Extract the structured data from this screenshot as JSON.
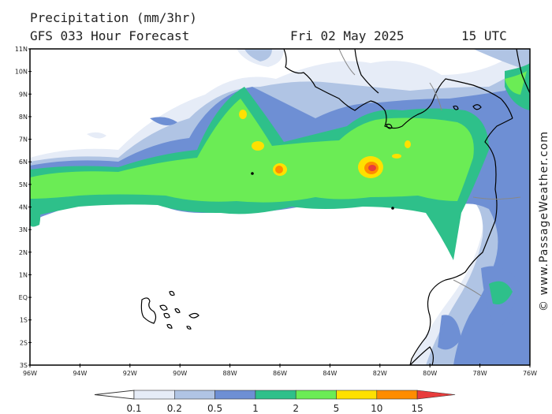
{
  "header": {
    "title": "Precipitation (mm/3hr)",
    "model": "GFS 033 Hour Forecast",
    "date": "Fri 02 May 2025",
    "time": "15 UTC"
  },
  "credit": "© www.PassageWeather.com",
  "axes": {
    "lat_labels": [
      "11N",
      "10N",
      "9N",
      "8N",
      "7N",
      "6N",
      "5N",
      "4N",
      "3N",
      "2N",
      "1N",
      "EQ",
      "1S",
      "2S",
      "3S"
    ],
    "lon_labels": [
      "96W",
      "94W",
      "92W",
      "90W",
      "88W",
      "86W",
      "84W",
      "82W",
      "80W",
      "78W",
      "76W"
    ]
  },
  "legend": {
    "labels": [
      "0.1",
      "0.2",
      "0.5",
      "1",
      "2",
      "5",
      "10",
      "15"
    ],
    "colors": [
      "#e6ecf7",
      "#b0c4e4",
      "#6e8fd4",
      "#2ec08a",
      "#6bec55",
      "#ffe000",
      "#ff8c00",
      "#e83c3c"
    ]
  },
  "colors": {
    "land_outline": "#000000",
    "border": "#888888",
    "map_frame": "#000000"
  }
}
